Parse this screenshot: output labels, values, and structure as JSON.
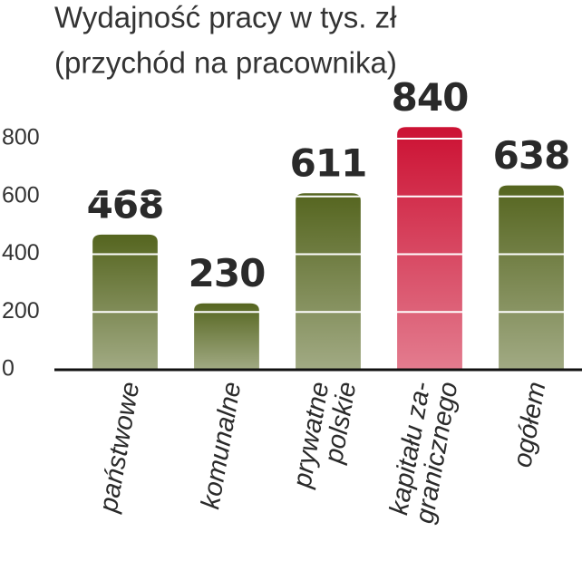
{
  "chart_data": {
    "type": "bar",
    "title": [
      "Wydajność pracy w tys. zł",
      "(przychód na pracownika)"
    ],
    "categories": [
      [
        "państwowe"
      ],
      [
        "komunalne"
      ],
      [
        "prywatne",
        "polskie"
      ],
      [
        "kapitału za-",
        "granicznego"
      ],
      [
        "ogółem"
      ]
    ],
    "values": [
      468,
      230,
      611,
      840,
      638
    ],
    "colors": [
      "#55651f",
      "#55651f",
      "#55651f",
      "#cc1133",
      "#55651f"
    ],
    "ylim": [
      0,
      800
    ],
    "yticks": [
      0,
      200,
      400,
      600,
      800
    ],
    "grid": true
  }
}
